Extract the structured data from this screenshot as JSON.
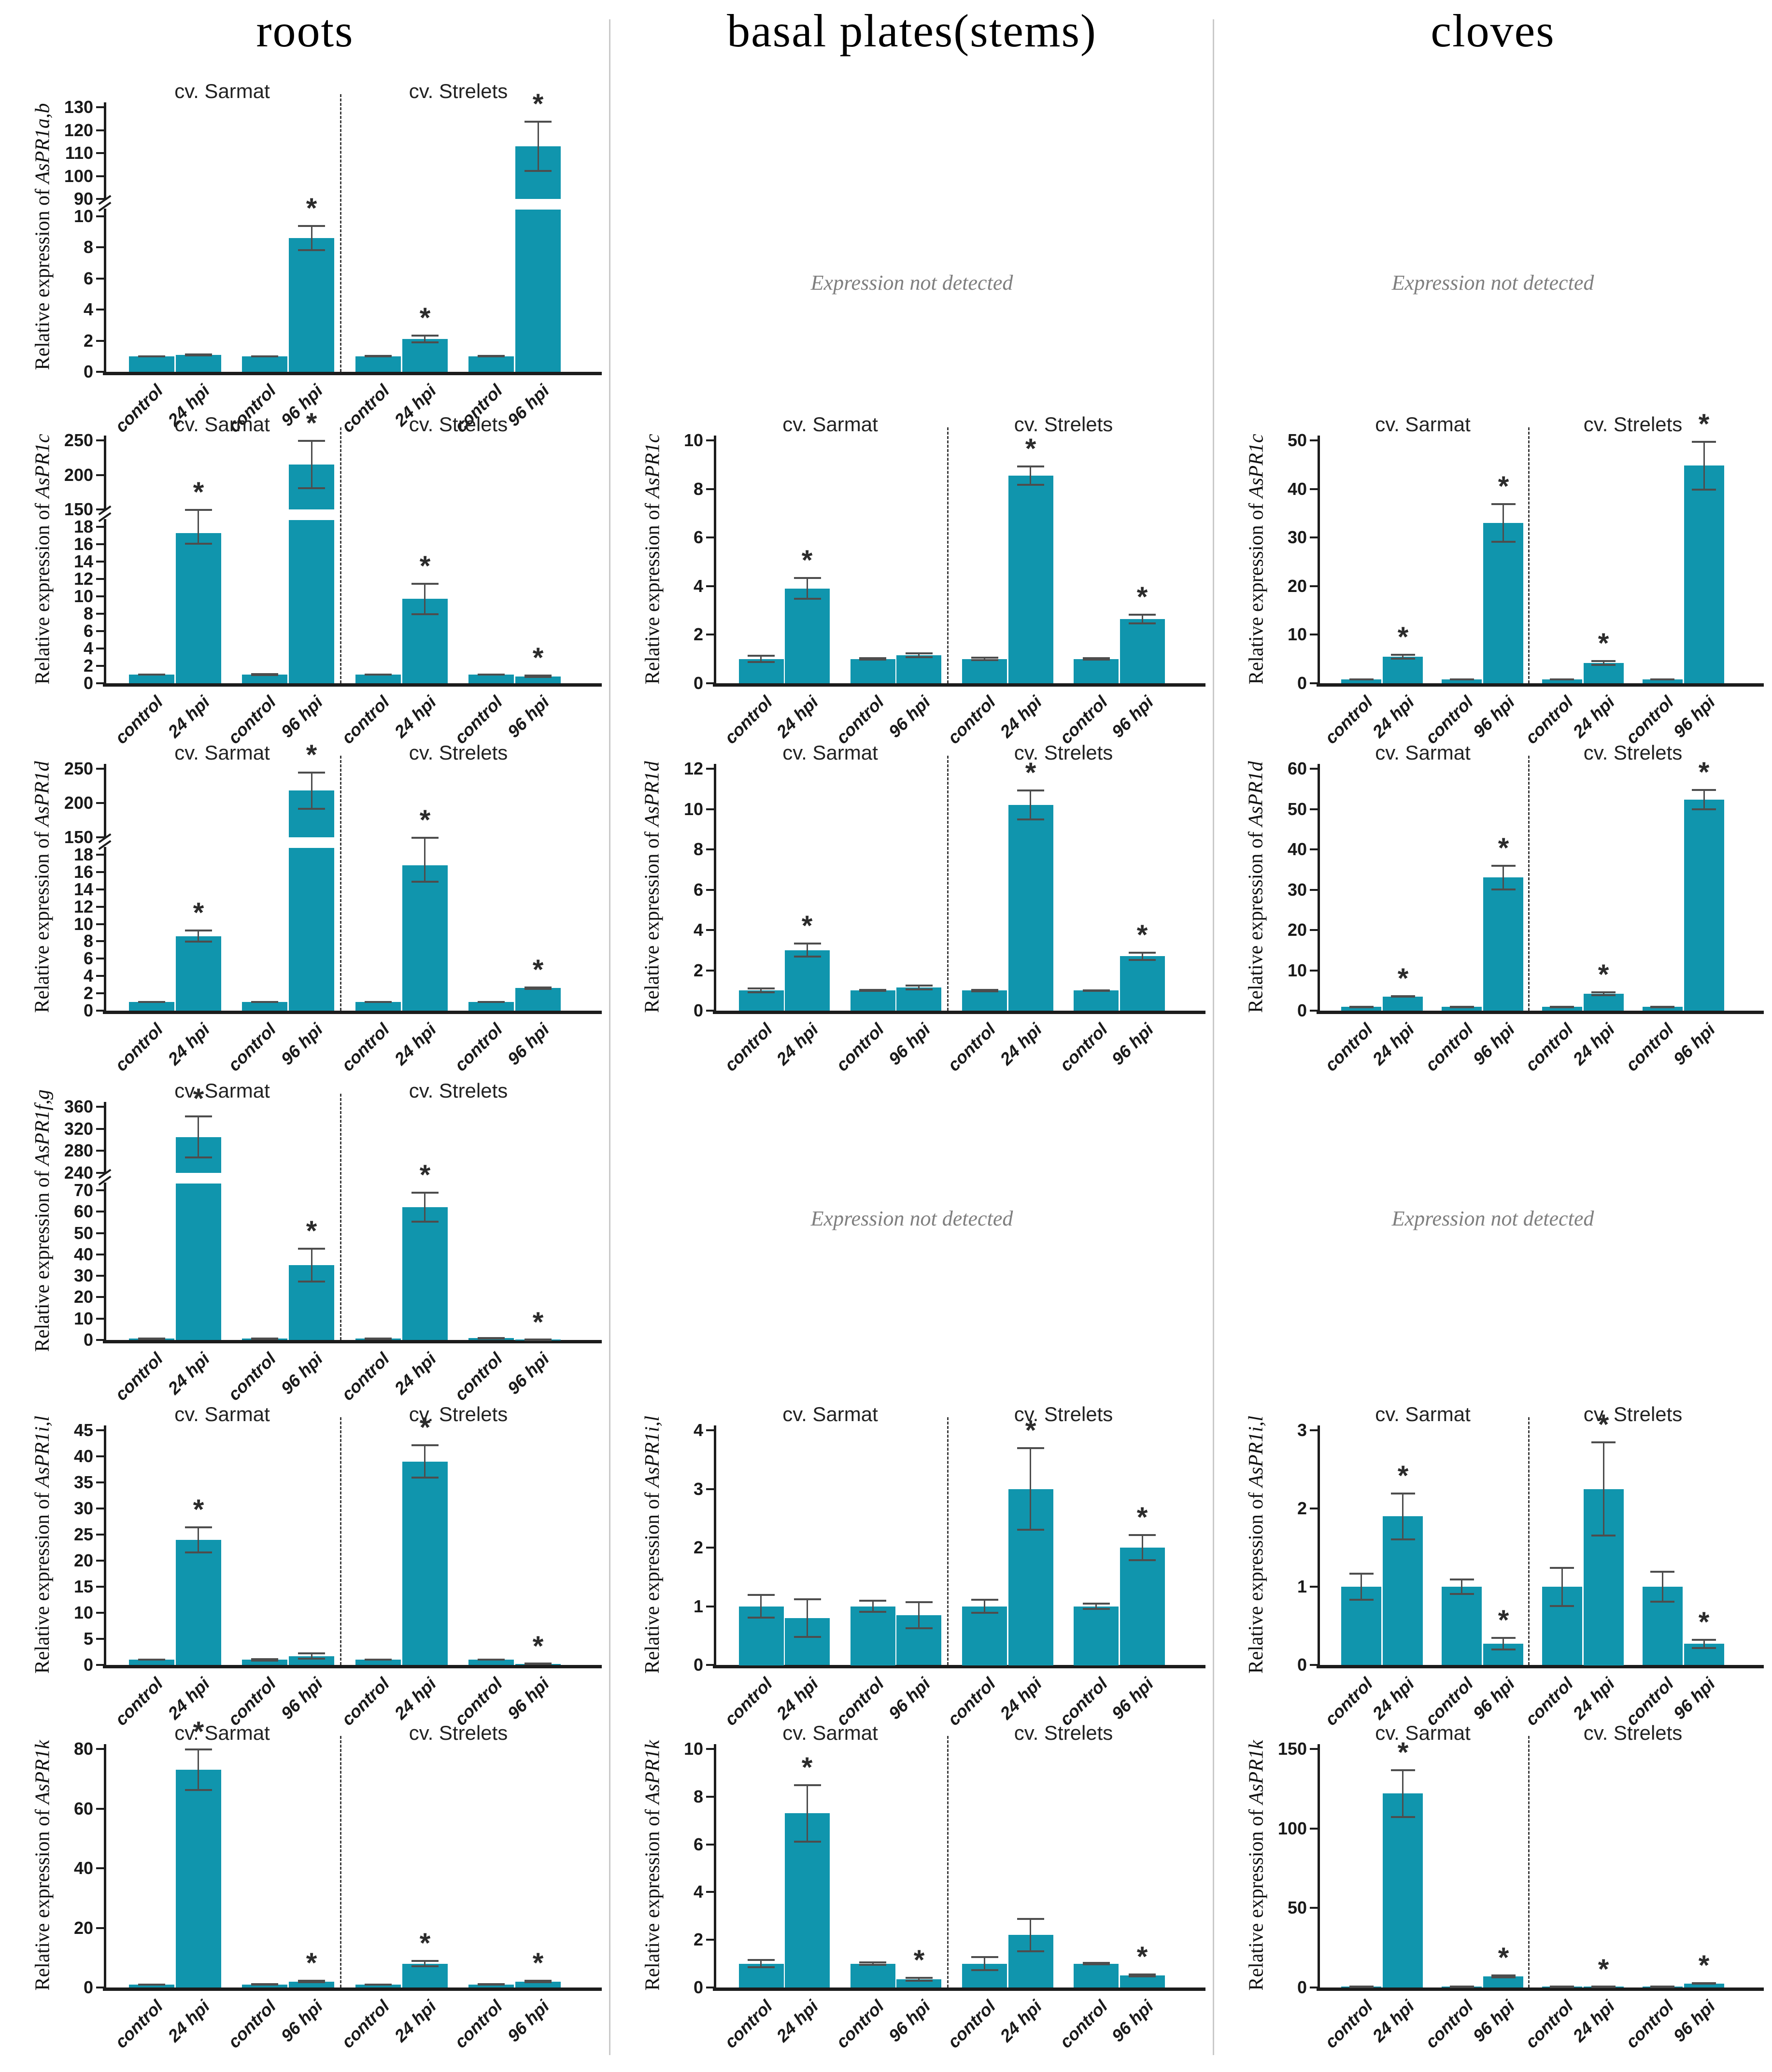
{
  "figure": {
    "headers": [
      {
        "label": "roots"
      },
      {
        "label": "basal plates(stems)"
      },
      {
        "label": "cloves"
      }
    ],
    "not_detected": "Expression not detected",
    "group_labels": [
      "cv. Sarmat",
      "cv. Strelets"
    ],
    "categories": [
      "control",
      "24 hpi",
      "control",
      "96 hpi",
      "control",
      "24 hpi",
      "control",
      "96 hpi"
    ],
    "ylabel_prefix": "Relative expression of ",
    "bar_color": "#1095ad",
    "error_bar_color": "#4d4d4d",
    "axis_color": "#1c1c1c",
    "not_detected_color": "#7f7f7f"
  },
  "chart_data": [
    {
      "row": 0,
      "col": 0,
      "type": "bar",
      "gene": "AsPR1a,b",
      "title": "Relative expression of AsPR1a,b",
      "axis": {
        "lower_max": 10,
        "lower_ticks": [
          0,
          2,
          4,
          6,
          8,
          10
        ],
        "upper_min": 90,
        "upper_max": 130,
        "upper_ticks": [
          90,
          100,
          110,
          120,
          130
        ],
        "upper_frac": 0.36
      },
      "values": [
        1,
        1.1,
        1,
        8.6,
        1,
        2.1,
        1,
        113
      ],
      "errors": [
        0.04,
        0.06,
        0.04,
        0.8,
        0.05,
        0.25,
        0.05,
        11
      ],
      "sig": [
        false,
        false,
        false,
        true,
        false,
        true,
        false,
        true
      ]
    },
    {
      "row": 0,
      "col": 1,
      "type": "not_detected"
    },
    {
      "row": 0,
      "col": 2,
      "type": "not_detected"
    },
    {
      "row": 1,
      "col": 0,
      "type": "bar",
      "gene": "AsPR1c",
      "title": "Relative expression of AsPR1c",
      "axis": {
        "lower_max": 18,
        "lower_ticks": [
          0,
          2,
          4,
          6,
          8,
          10,
          12,
          14,
          16,
          18
        ],
        "upper_min": 150,
        "upper_max": 250,
        "upper_ticks": [
          150,
          200,
          250
        ],
        "upper_frac": 0.3
      },
      "values": [
        1,
        17.3,
        1,
        215,
        1,
        9.7,
        1,
        0.8
      ],
      "errors": [
        0.07,
        1.3,
        0.1,
        35,
        0.07,
        1.8,
        0.08,
        0.12
      ],
      "sig": [
        false,
        true,
        false,
        true,
        false,
        true,
        false,
        true
      ]
    },
    {
      "row": 1,
      "col": 1,
      "type": "bar",
      "gene": "AsPR1c",
      "title": "Relative expression of AsPR1c",
      "axis": {
        "ymax": 10,
        "ticks": [
          0,
          2,
          4,
          6,
          8,
          10
        ]
      },
      "values": [
        1,
        3.9,
        1,
        1.15,
        1,
        8.55,
        1,
        2.65
      ],
      "errors": [
        0.15,
        0.45,
        0.05,
        0.1,
        0.07,
        0.4,
        0.05,
        0.2
      ],
      "sig": [
        false,
        true,
        false,
        false,
        false,
        true,
        false,
        true
      ]
    },
    {
      "row": 1,
      "col": 2,
      "type": "bar",
      "gene": "AsPR1c",
      "title": "Relative expression of AsPR1c",
      "axis": {
        "ymax": 50,
        "ticks": [
          0,
          10,
          20,
          30,
          40,
          50
        ]
      },
      "values": [
        0.8,
        5.5,
        0.8,
        33,
        0.8,
        4.2,
        0.8,
        44.8
      ],
      "errors": [
        0.1,
        0.5,
        0.1,
        4,
        0.1,
        0.5,
        0.1,
        5
      ],
      "sig": [
        false,
        true,
        false,
        true,
        false,
        true,
        false,
        true
      ]
    },
    {
      "row": 2,
      "col": 0,
      "type": "bar",
      "gene": "AsPR1d",
      "title": "Relative expression of AsPR1d",
      "axis": {
        "lower_max": 18,
        "lower_ticks": [
          0,
          2,
          4,
          6,
          8,
          10,
          12,
          14,
          16,
          18
        ],
        "upper_min": 150,
        "upper_max": 250,
        "upper_ticks": [
          150,
          200,
          250
        ],
        "upper_frac": 0.3
      },
      "values": [
        1,
        8.6,
        1,
        218,
        1,
        16.8,
        1,
        2.6
      ],
      "errors": [
        0.06,
        0.7,
        0.06,
        27,
        0.06,
        2.0,
        0.06,
        0.15
      ],
      "sig": [
        false,
        true,
        false,
        true,
        false,
        true,
        false,
        true
      ]
    },
    {
      "row": 2,
      "col": 1,
      "type": "bar",
      "gene": "AsPR1d",
      "title": "Relative expression of AsPR1d",
      "axis": {
        "ymax": 12,
        "ticks": [
          0,
          2,
          4,
          6,
          8,
          10,
          12
        ]
      },
      "values": [
        1,
        3.0,
        1,
        1.15,
        1,
        10.2,
        1,
        2.7
      ],
      "errors": [
        0.12,
        0.35,
        0.05,
        0.12,
        0.06,
        0.75,
        0.04,
        0.2
      ],
      "sig": [
        false,
        true,
        false,
        false,
        false,
        true,
        false,
        true
      ]
    },
    {
      "row": 2,
      "col": 2,
      "type": "bar",
      "gene": "AsPR1d",
      "title": "Relative expression of AsPR1d",
      "axis": {
        "ymax": 60,
        "ticks": [
          0,
          10,
          20,
          30,
          40,
          50,
          60
        ]
      },
      "values": [
        0.9,
        3.5,
        0.9,
        33,
        0.9,
        4.2,
        0.9,
        52.3
      ],
      "errors": [
        0.08,
        0.2,
        0.08,
        3,
        0.08,
        0.5,
        0.08,
        2.5
      ],
      "sig": [
        false,
        true,
        false,
        true,
        false,
        true,
        false,
        true
      ]
    },
    {
      "row": 3,
      "col": 0,
      "type": "bar",
      "gene": "AsPR1f,g",
      "title": "Relative expression of AsPR1f,g",
      "axis": {
        "lower_max": 70,
        "lower_ticks": [
          0,
          10,
          20,
          30,
          40,
          50,
          60,
          70
        ],
        "upper_min": 240,
        "upper_max": 360,
        "upper_ticks": [
          240,
          280,
          320,
          360
        ],
        "upper_frac": 0.3
      },
      "values": [
        0.6,
        305,
        0.6,
        35,
        0.6,
        62,
        0.8,
        0.15
      ],
      "errors": [
        0.05,
        38,
        0.05,
        8,
        0.05,
        7,
        0.1,
        0.05
      ],
      "sig": [
        false,
        true,
        false,
        true,
        false,
        true,
        false,
        true
      ]
    },
    {
      "row": 3,
      "col": 1,
      "type": "not_detected"
    },
    {
      "row": 3,
      "col": 2,
      "type": "not_detected"
    },
    {
      "row": 4,
      "col": 0,
      "type": "bar",
      "gene": "AsPR1i,l",
      "title": "Relative expression of AsPR1i,l",
      "axis": {
        "ymax": 45,
        "ticks": [
          0,
          5,
          10,
          15,
          20,
          25,
          30,
          35,
          40,
          45
        ]
      },
      "values": [
        1,
        24,
        1,
        1.7,
        1,
        39,
        1,
        0.2
      ],
      "errors": [
        0.08,
        2.5,
        0.25,
        0.6,
        0.08,
        3.2,
        0.1,
        0.05
      ],
      "sig": [
        false,
        true,
        false,
        false,
        false,
        true,
        false,
        true
      ]
    },
    {
      "row": 4,
      "col": 1,
      "type": "bar",
      "gene": "AsPR1i,l",
      "title": "Relative expression of AsPR1i,l",
      "axis": {
        "ymax": 4,
        "ticks": [
          0,
          1,
          2,
          3,
          4
        ]
      },
      "values": [
        1,
        0.8,
        1,
        0.85,
        1,
        3.0,
        1,
        2.0
      ],
      "errors": [
        0.2,
        0.33,
        0.1,
        0.23,
        0.12,
        0.7,
        0.05,
        0.22
      ],
      "sig": [
        false,
        false,
        false,
        false,
        false,
        true,
        false,
        true
      ]
    },
    {
      "row": 4,
      "col": 2,
      "type": "bar",
      "gene": "AsPR1i,l",
      "title": "Relative expression of AsPR1i,l",
      "axis": {
        "ymax": 3,
        "ticks": [
          0,
          1,
          2,
          3
        ]
      },
      "values": [
        1,
        1.9,
        1,
        0.27,
        1,
        2.25,
        1,
        0.27
      ],
      "errors": [
        0.17,
        0.3,
        0.1,
        0.08,
        0.25,
        0.6,
        0.2,
        0.06
      ],
      "sig": [
        false,
        true,
        false,
        true,
        false,
        true,
        false,
        true
      ]
    },
    {
      "row": 5,
      "col": 0,
      "type": "bar",
      "gene": "AsPR1k",
      "title": "Relative expression of AsPR1k",
      "axis": {
        "ymax": 80,
        "ticks": [
          0,
          20,
          40,
          60,
          80
        ]
      },
      "values": [
        1,
        73,
        1,
        2,
        1,
        8,
        1,
        2
      ],
      "errors": [
        0.15,
        7,
        0.1,
        0.4,
        0.15,
        1,
        0.1,
        0.4
      ],
      "sig": [
        false,
        true,
        false,
        true,
        false,
        true,
        false,
        true
      ]
    },
    {
      "row": 5,
      "col": 1,
      "type": "bar",
      "gene": "AsPR1k",
      "title": "Relative expression of AsPR1k",
      "axis": {
        "ymax": 10,
        "ticks": [
          0,
          2,
          4,
          6,
          8,
          10
        ]
      },
      "values": [
        1,
        7.3,
        1,
        0.35,
        1,
        2.2,
        1,
        0.5
      ],
      "errors": [
        0.18,
        1.2,
        0.07,
        0.08,
        0.3,
        0.7,
        0.05,
        0.06
      ],
      "sig": [
        false,
        true,
        false,
        true,
        false,
        false,
        false,
        true
      ]
    },
    {
      "row": 5,
      "col": 2,
      "type": "bar",
      "gene": "AsPR1k",
      "title": "Relative expression of AsPR1k",
      "axis": {
        "ymax": 150,
        "ticks": [
          0,
          50,
          100,
          150
        ]
      },
      "values": [
        0.5,
        122,
        0.5,
        7,
        0.5,
        0.5,
        0.5,
        2.5
      ],
      "errors": [
        0.1,
        15,
        0.1,
        0.8,
        0.1,
        0.1,
        0.1,
        0.5
      ],
      "sig": [
        false,
        true,
        false,
        true,
        false,
        true,
        false,
        true
      ]
    }
  ]
}
